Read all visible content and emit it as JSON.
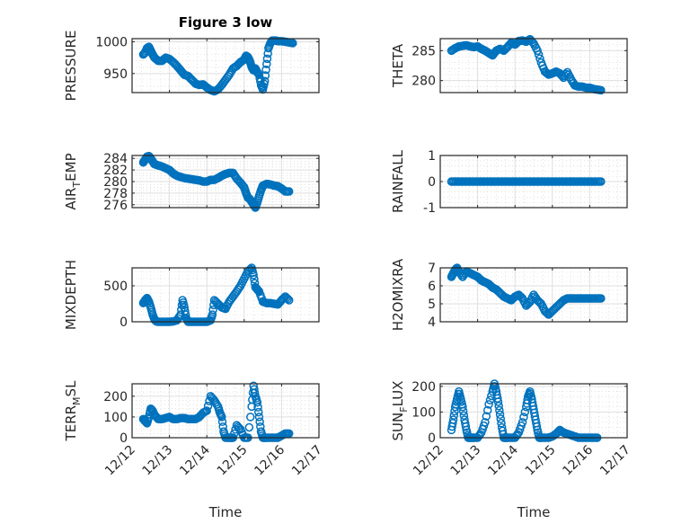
{
  "figure": {
    "title": "Figure 3 low",
    "xlabel": "Time",
    "marker_color": "#0072BD"
  },
  "chart_data": [
    {
      "type": "scatter",
      "name": "pressure",
      "ylabel": "PRESSURE",
      "title": "Figure 3 low",
      "ylim": [
        920,
        1005
      ],
      "yticks": [
        950,
        1000
      ],
      "ytick_labels": [
        "950",
        "1000"
      ],
      "xlim": [
        0,
        5
      ],
      "xtick_labels": [
        "12/12",
        "12/13",
        "12/14",
        "12/15",
        "12/16",
        "12/17"
      ],
      "x_days_from_1212": [
        0.3,
        0.35,
        0.4,
        0.45,
        0.5,
        0.55,
        0.6,
        0.7,
        0.8,
        0.9,
        1.0,
        1.1,
        1.2,
        1.3,
        1.4,
        1.5,
        1.6,
        1.7,
        1.8,
        1.9,
        2.0,
        2.1,
        2.2,
        2.3,
        2.4,
        2.5,
        2.6,
        2.7,
        2.8,
        2.9,
        3.0,
        3.05,
        3.1,
        3.15,
        3.2,
        3.25,
        3.3,
        3.35,
        3.4,
        3.45,
        3.5,
        3.55,
        3.6,
        3.65,
        3.7,
        3.75,
        3.8,
        3.85,
        3.9,
        4.0,
        4.1,
        4.2,
        4.3
      ],
      "y": [
        980,
        983,
        990,
        992,
        986,
        980,
        975,
        970,
        970,
        975,
        973,
        968,
        962,
        955,
        948,
        946,
        940,
        934,
        932,
        933,
        928,
        924,
        922,
        925,
        932,
        940,
        948,
        958,
        962,
        968,
        972,
        978,
        976,
        970,
        960,
        955,
        958,
        952,
        948,
        932,
        925,
        938,
        965,
        990,
        998,
        1002,
        1002,
        1002,
        1001,
        1001,
        1000,
        999,
        998
      ]
    },
    {
      "type": "scatter",
      "name": "theta",
      "ylabel": "THETA",
      "ylim": [
        278,
        287
      ],
      "yticks": [
        280,
        285
      ],
      "ytick_labels": [
        "280",
        "285"
      ],
      "xlim": [
        0,
        5
      ],
      "x_days_from_1212": [
        0.3,
        0.4,
        0.5,
        0.6,
        0.7,
        0.8,
        0.9,
        1.0,
        1.1,
        1.2,
        1.3,
        1.4,
        1.5,
        1.6,
        1.7,
        1.8,
        1.9,
        2.0,
        2.1,
        2.2,
        2.3,
        2.4,
        2.5,
        2.6,
        2.7,
        2.8,
        2.9,
        3.0,
        3.1,
        3.2,
        3.3,
        3.4,
        3.5,
        3.6,
        3.7,
        3.8,
        3.9,
        4.0,
        4.1,
        4.2,
        4.3
      ],
      "y": [
        285,
        285.4,
        285.7,
        285.8,
        285.9,
        285.7,
        285.6,
        285.7,
        285.3,
        285,
        284.6,
        284.2,
        285,
        285.3,
        285,
        285.6,
        286.3,
        286,
        286.6,
        286.7,
        286.5,
        286.9,
        286.2,
        285,
        283,
        281.5,
        281,
        281.2,
        281.5,
        281.2,
        280.5,
        281.4,
        280.2,
        279.2,
        279,
        279,
        278.8,
        278.8,
        278.6,
        278.5,
        278.4
      ]
    },
    {
      "type": "scatter",
      "name": "air-temp",
      "ylabel": "AIR_TEMP",
      "ylabel_parts": [
        "AIR",
        "T",
        "EMP"
      ],
      "ylim": [
        275.5,
        284.5
      ],
      "yticks": [
        276,
        278,
        280,
        282,
        284
      ],
      "ytick_labels": [
        "276",
        "278",
        "280",
        "282",
        "284"
      ],
      "xlim": [
        0,
        5
      ],
      "x_days_from_1212": [
        0.3,
        0.35,
        0.4,
        0.45,
        0.5,
        0.55,
        0.6,
        0.7,
        0.8,
        0.9,
        1.0,
        1.1,
        1.2,
        1.3,
        1.4,
        1.5,
        1.6,
        1.7,
        1.8,
        1.9,
        2.0,
        2.1,
        2.2,
        2.3,
        2.4,
        2.5,
        2.6,
        2.7,
        2.8,
        2.9,
        3.0,
        3.05,
        3.1,
        3.15,
        3.2,
        3.25,
        3.3,
        3.35,
        3.4,
        3.45,
        3.5,
        3.6,
        3.7,
        3.8,
        3.9,
        4.0,
        4.1,
        4.2
      ],
      "y": [
        283.3,
        283.8,
        284.3,
        284.4,
        284,
        283.5,
        283,
        282.8,
        282.6,
        282.3,
        282,
        281.4,
        281,
        280.8,
        280.6,
        280.5,
        280.4,
        280.3,
        280.2,
        280,
        280,
        280.3,
        280.3,
        280.6,
        281,
        281.3,
        281.5,
        281.5,
        280.5,
        279.8,
        279,
        278,
        277.2,
        277,
        276.5,
        276,
        275.5,
        276.4,
        277.5,
        278.5,
        279.3,
        279.6,
        279.5,
        279.3,
        279.2,
        278.8,
        278.3,
        278.3
      ]
    },
    {
      "type": "scatter",
      "name": "rainfall",
      "ylabel": "RAINFALL",
      "ylim": [
        -1,
        1
      ],
      "yticks": [
        -1,
        0,
        1
      ],
      "ytick_labels": [
        "-1",
        "0",
        "1"
      ],
      "xlim": [
        0,
        5
      ],
      "x_range_days_from_1212": [
        0.3,
        4.3
      ],
      "constant_value": 0
    },
    {
      "type": "scatter",
      "name": "mixdepth",
      "ylabel": "MIXDEPTH",
      "ylim": [
        0,
        750
      ],
      "yticks": [
        0,
        500
      ],
      "ytick_labels": [
        "0",
        "500"
      ],
      "xlim": [
        0,
        5
      ],
      "x_days_from_1212": [
        0.3,
        0.35,
        0.4,
        0.45,
        0.5,
        0.55,
        0.6,
        0.65,
        0.7,
        0.8,
        0.9,
        1.0,
        1.1,
        1.2,
        1.3,
        1.35,
        1.4,
        1.45,
        1.5,
        1.6,
        1.7,
        1.8,
        1.9,
        2.0,
        2.1,
        2.15,
        2.2,
        2.3,
        2.4,
        2.5,
        2.6,
        2.7,
        2.8,
        2.9,
        3.0,
        3.1,
        3.2,
        3.25,
        3.3,
        3.35,
        3.4,
        3.5,
        3.6,
        3.7,
        3.8,
        3.9,
        4.0,
        4.1,
        4.2
      ],
      "y": [
        260,
        300,
        330,
        280,
        200,
        100,
        30,
        5,
        0,
        0,
        0,
        0,
        5,
        20,
        100,
        300,
        200,
        50,
        0,
        0,
        0,
        0,
        0,
        0,
        20,
        100,
        300,
        250,
        200,
        180,
        280,
        350,
        420,
        500,
        600,
        700,
        750,
        650,
        480,
        450,
        420,
        280,
        260,
        260,
        250,
        240,
        300,
        350,
        300
      ]
    },
    {
      "type": "scatter",
      "name": "h2omixra",
      "ylabel": "H2OMIXRA",
      "ylim": [
        4,
        7
      ],
      "yticks": [
        4,
        5,
        6,
        7
      ],
      "ytick_labels": [
        "4",
        "5",
        "6",
        "7"
      ],
      "xlim": [
        0,
        5
      ],
      "x_days_from_1212": [
        0.3,
        0.35,
        0.4,
        0.45,
        0.5,
        0.6,
        0.7,
        0.8,
        0.9,
        1.0,
        1.1,
        1.2,
        1.3,
        1.4,
        1.5,
        1.6,
        1.7,
        1.8,
        1.9,
        2.0,
        2.1,
        2.2,
        2.3,
        2.4,
        2.5,
        2.6,
        2.7,
        2.8,
        2.9,
        3.0,
        3.1,
        3.2,
        3.3,
        3.4,
        3.5,
        3.6,
        3.7,
        3.8,
        3.9,
        4.0,
        4.1,
        4.2,
        4.3
      ],
      "y": [
        6.5,
        6.7,
        6.9,
        7.0,
        6.8,
        6.5,
        6.8,
        6.7,
        6.6,
        6.5,
        6.3,
        6.2,
        6.1,
        5.9,
        5.8,
        5.6,
        5.4,
        5.3,
        5.2,
        5.4,
        5.5,
        5.3,
        4.9,
        5.1,
        5.5,
        5.2,
        5.0,
        4.6,
        4.4,
        4.6,
        4.8,
        5.0,
        5.2,
        5.3,
        5.3,
        5.3,
        5.3,
        5.3,
        5.3,
        5.3,
        5.3,
        5.3,
        5.3
      ]
    },
    {
      "type": "scatter",
      "name": "terr-msl",
      "ylabel": "TERR_MSL",
      "ylabel_parts": [
        "TERR",
        "M",
        "SL"
      ],
      "ylim": [
        0,
        260
      ],
      "yticks": [
        0,
        100,
        200
      ],
      "ytick_labels": [
        "0",
        "100",
        "200"
      ],
      "xlim": [
        0,
        5
      ],
      "xtick_labels": [
        "12/12",
        "12/13",
        "12/14",
        "12/15",
        "12/16",
        "12/17"
      ],
      "x_days_from_1212": [
        0.3,
        0.35,
        0.4,
        0.45,
        0.5,
        0.55,
        0.6,
        0.7,
        0.8,
        0.9,
        1.0,
        1.1,
        1.2,
        1.3,
        1.4,
        1.5,
        1.6,
        1.7,
        1.8,
        1.9,
        2.0,
        2.1,
        2.2,
        2.3,
        2.35,
        2.4,
        2.45,
        2.5,
        2.6,
        2.65,
        2.7,
        2.8,
        2.9,
        3.0,
        3.1,
        3.2,
        3.25,
        3.3,
        3.35,
        3.4,
        3.45,
        3.5,
        3.55,
        3.6,
        3.7,
        3.8,
        3.9,
        4.0,
        4.1,
        4.2
      ],
      "y": [
        90,
        80,
        70,
        100,
        140,
        130,
        110,
        90,
        90,
        95,
        100,
        90,
        90,
        95,
        95,
        90,
        90,
        90,
        100,
        120,
        130,
        200,
        180,
        150,
        120,
        100,
        30,
        0,
        0,
        0,
        0,
        60,
        40,
        0,
        0,
        150,
        250,
        200,
        170,
        100,
        30,
        0,
        0,
        0,
        0,
        0,
        0,
        10,
        20,
        20
      ]
    },
    {
      "type": "scatter",
      "name": "sun-flux",
      "ylabel": "SUN_FLUX",
      "ylabel_parts": [
        "SUN",
        "F",
        "LUX"
      ],
      "ylim": [
        0,
        210
      ],
      "yticks": [
        0,
        100,
        200
      ],
      "ytick_labels": [
        "0",
        "100",
        "200"
      ],
      "xlim": [
        0,
        5
      ],
      "xtick_labels": [
        "12/12",
        "12/13",
        "12/14",
        "12/15",
        "12/16",
        "12/17"
      ],
      "x_days_from_1212": [
        0.3,
        0.35,
        0.4,
        0.45,
        0.5,
        0.55,
        0.6,
        0.65,
        0.7,
        0.75,
        0.8,
        0.85,
        0.9,
        1.0,
        1.1,
        1.2,
        1.3,
        1.4,
        1.45,
        1.5,
        1.55,
        1.6,
        1.65,
        1.7,
        1.75,
        1.8,
        1.9,
        2.0,
        2.1,
        2.2,
        2.3,
        2.35,
        2.4,
        2.45,
        2.5,
        2.55,
        2.6,
        2.65,
        2.7,
        2.8,
        2.9,
        3.0,
        3.1,
        3.2,
        3.3,
        3.4,
        3.5,
        3.6,
        3.7,
        3.8,
        3.9,
        4.0,
        4.1,
        4.2
      ],
      "y": [
        30,
        70,
        120,
        150,
        180,
        150,
        120,
        70,
        30,
        0,
        0,
        0,
        0,
        0,
        20,
        60,
        130,
        180,
        210,
        180,
        140,
        90,
        40,
        0,
        0,
        0,
        0,
        0,
        20,
        60,
        120,
        160,
        180,
        150,
        110,
        70,
        30,
        0,
        0,
        0,
        0,
        5,
        15,
        30,
        20,
        15,
        10,
        5,
        0,
        0,
        0,
        0,
        0,
        0
      ]
    }
  ]
}
